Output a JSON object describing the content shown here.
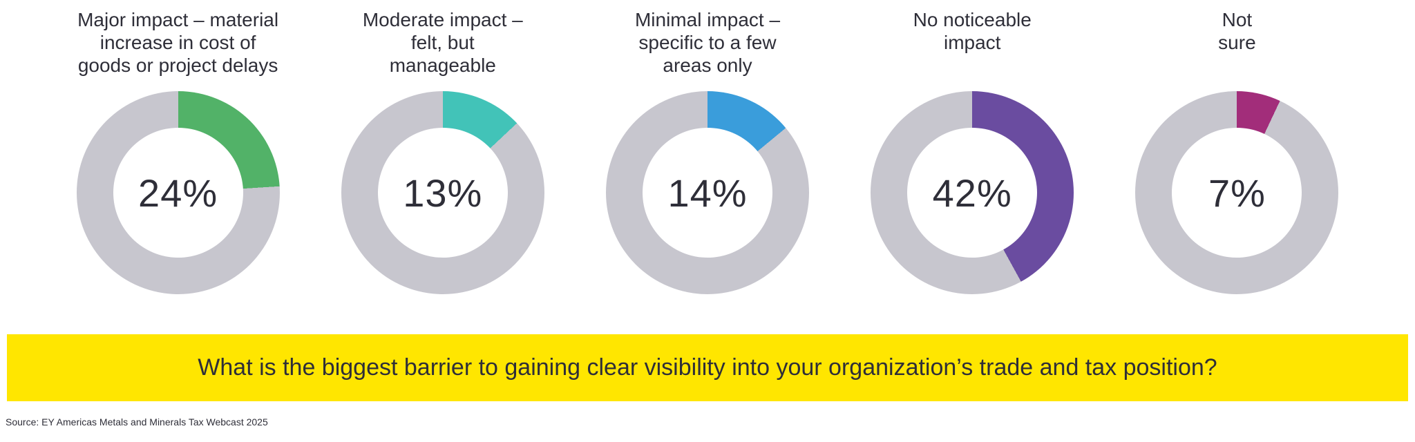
{
  "chart_data": {
    "type": "pie",
    "subtype": "donut-small-multiples",
    "title": "",
    "legend_position": "none",
    "track_color": "#c7c6ce",
    "center_label_format": "percent",
    "donuts": [
      {
        "label": "Major impact – material\nincrease in cost of\ngoods or project delays",
        "value": 24,
        "value_label": "24%",
        "color": "#52b268"
      },
      {
        "label": "Moderate impact –\nfelt, but\nmanageable",
        "value": 13,
        "value_label": "13%",
        "color": "#42c3b8"
      },
      {
        "label": "Minimal impact –\nspecific to a few\nareas only",
        "value": 14,
        "value_label": "14%",
        "color": "#3a9ddb"
      },
      {
        "label": "No noticeable\nimpact",
        "value": 42,
        "value_label": "42%",
        "color": "#6a4ca0"
      },
      {
        "label": "Not\nsure",
        "value": 7,
        "value_label": "7%",
        "color": "#a22d7a"
      }
    ]
  },
  "banner": {
    "question": "What is the biggest barrier to gaining clear visibility into your organization’s trade and tax position?",
    "bg_color": "#ffe600",
    "text_color": "#2e2e38"
  },
  "source": {
    "text": "Source: EY Americas Metals and Minerals Tax Webcast 2025"
  }
}
